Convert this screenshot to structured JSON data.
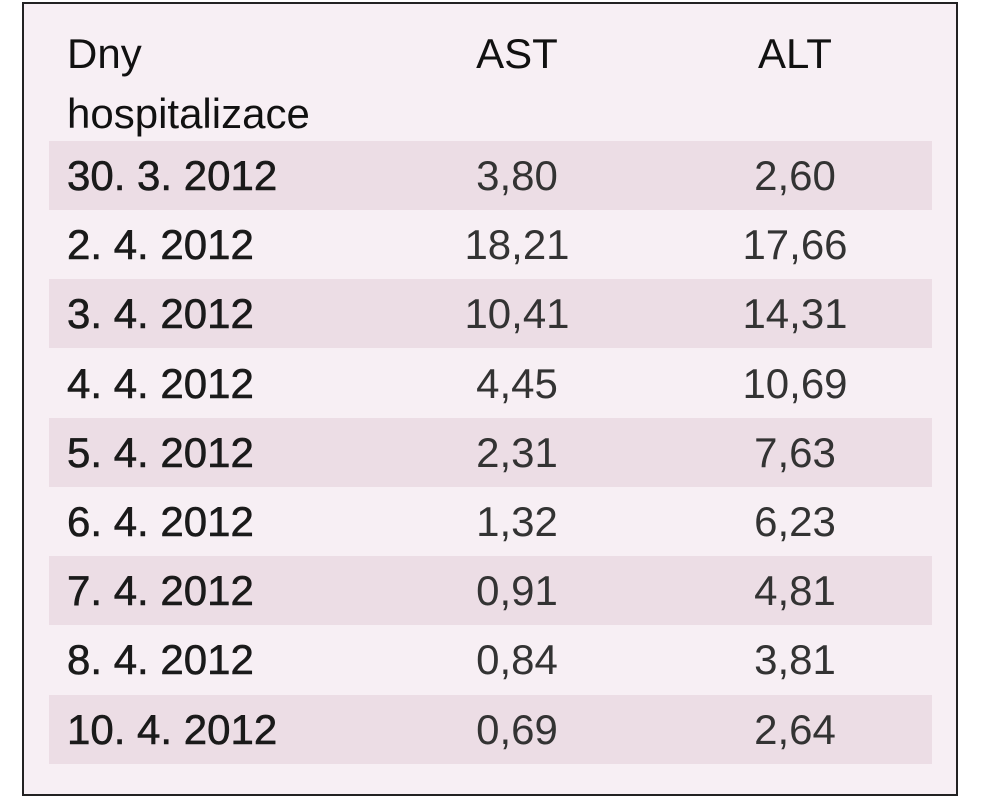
{
  "table": {
    "header": [
      "Dny hospitalizace",
      "AST",
      "ALT"
    ],
    "rows": [
      [
        "30. 3. 2012",
        "3,80",
        "2,60"
      ],
      [
        "2. 4. 2012",
        "18,21",
        "17,66"
      ],
      [
        "3. 4. 2012",
        "10,41",
        "14,31"
      ],
      [
        "4. 4. 2012",
        "4,45",
        "10,69"
      ],
      [
        "5. 4. 2012",
        "2,31",
        "7,63"
      ],
      [
        "6. 4. 2012",
        "1,32",
        "6,23"
      ],
      [
        "7. 4. 2012",
        "0,91",
        "4,81"
      ],
      [
        "8. 4. 2012",
        "0,84",
        "3,81"
      ],
      [
        "10. 4. 2012",
        "0,69",
        "2,64"
      ]
    ]
  }
}
